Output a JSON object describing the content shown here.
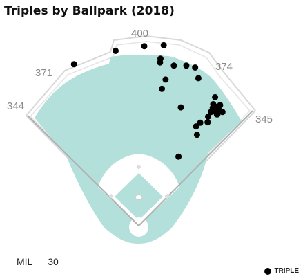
{
  "title": "Triples by Ballpark (2018)",
  "team": {
    "abbr": "MIL",
    "count": "30"
  },
  "legend": {
    "label": "TRIPLE",
    "color": "#000000"
  },
  "colors": {
    "grass": "#b3e0da",
    "warning_track": "#e9e9e9",
    "wall": "#d8d8d8",
    "foul_line": "#b0b0b0",
    "infield": "#ffffff"
  },
  "chart_data": {
    "type": "scatter",
    "series": [
      {
        "name": "TRIPLE",
        "values": []
      }
    ],
    "distance_markers": [
      {
        "label": "344",
        "field": "left-field-line"
      },
      {
        "label": "371",
        "field": "left-center"
      },
      {
        "label": "400",
        "field": "center-field"
      },
      {
        "label": "374",
        "field": "right-center"
      },
      {
        "label": "345",
        "field": "right-field-line"
      }
    ],
    "points": [
      {
        "x": -140,
        "y": 348
      },
      {
        "x": -50,
        "y": 377
      },
      {
        "x": 12,
        "y": 387
      },
      {
        "x": 54,
        "y": 389
      },
      {
        "x": 47,
        "y": 360
      },
      {
        "x": 46,
        "y": 352
      },
      {
        "x": 76,
        "y": 345
      },
      {
        "x": 103,
        "y": 345
      },
      {
        "x": 122,
        "y": 341
      },
      {
        "x": 129,
        "y": 318
      },
      {
        "x": 58,
        "y": 315
      },
      {
        "x": 50,
        "y": 295
      },
      {
        "x": 91,
        "y": 255
      },
      {
        "x": 165,
        "y": 277
      },
      {
        "x": 161,
        "y": 262
      },
      {
        "x": 163,
        "y": 248
      },
      {
        "x": 168,
        "y": 256
      },
      {
        "x": 176,
        "y": 260
      },
      {
        "x": 175,
        "y": 248
      },
      {
        "x": 169,
        "y": 240
      },
      {
        "x": 181,
        "y": 245
      },
      {
        "x": 160,
        "y": 254
      },
      {
        "x": 156,
        "y": 245
      },
      {
        "x": 150,
        "y": 235
      },
      {
        "x": 149,
        "y": 223
      },
      {
        "x": 133,
        "y": 222
      },
      {
        "x": 124,
        "y": 214
      },
      {
        "x": 126,
        "y": 196
      },
      {
        "x": 86,
        "y": 149
      },
      {
        "x": 170,
        "y": 240
      }
    ],
    "xlim": [
      -230,
      230
    ],
    "ylim": [
      0,
      420
    ],
    "grid": false,
    "legend_position": "bottom-right"
  }
}
